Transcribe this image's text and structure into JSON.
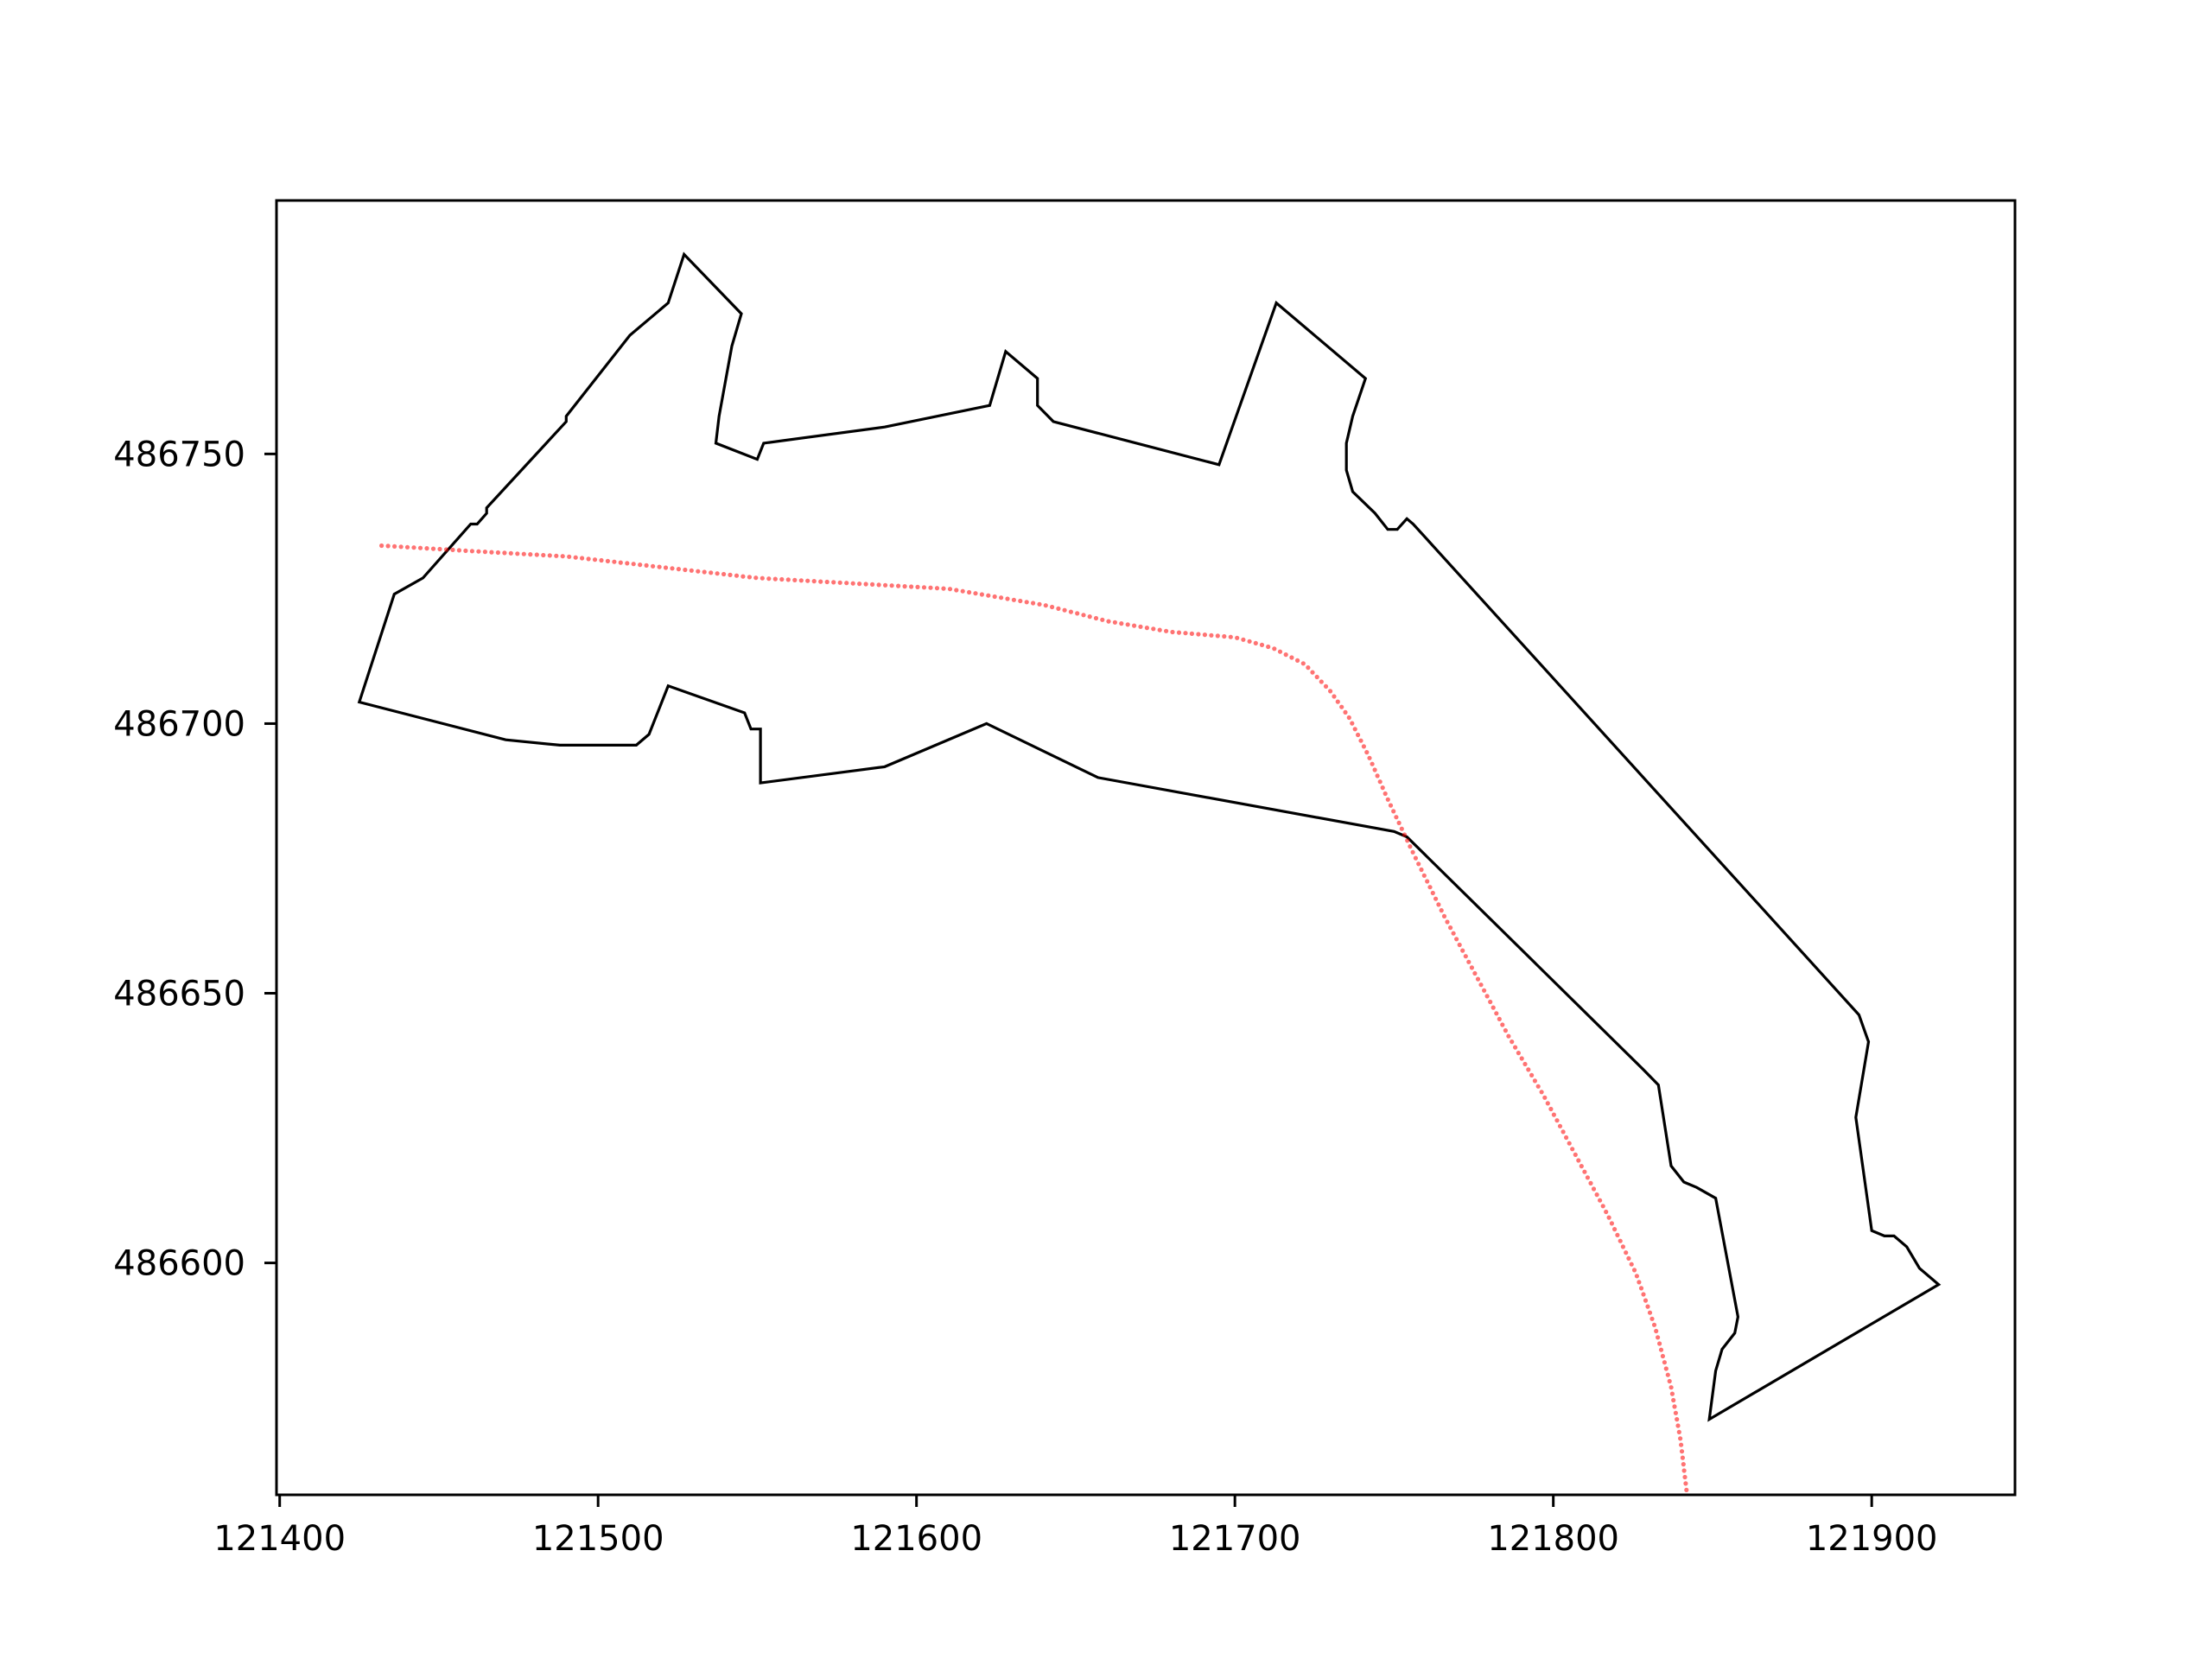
{
  "chart_data": {
    "type": "line",
    "title": "",
    "xlabel": "",
    "ylabel": "",
    "xlim": [
      121399,
      121945
    ],
    "ylim": [
      486557,
      486797
    ],
    "x_ticks": [
      121400,
      121500,
      121600,
      121700,
      121800,
      121900
    ],
    "y_ticks": [
      486600,
      486650,
      486700,
      486750
    ],
    "x_tick_labels": [
      "121400",
      "121500",
      "121600",
      "121700",
      "121800",
      "121900"
    ],
    "y_tick_labels": [
      "486600",
      "486650",
      "486700",
      "486750"
    ],
    "grid": false,
    "legend": "none",
    "colors": {
      "boundary": "#000000",
      "path": "#ff0000"
    },
    "series": [
      {
        "style": "polygon-outline",
        "color": "#000000",
        "points": [
          [
            121425,
            486704
          ],
          [
            121436,
            486724
          ],
          [
            121445,
            486727
          ],
          [
            121460,
            486737
          ],
          [
            121462,
            486737
          ],
          [
            121465,
            486739
          ],
          [
            121465,
            486740
          ],
          [
            121490,
            486756
          ],
          [
            121490,
            486757
          ],
          [
            121510,
            486772
          ],
          [
            121522,
            486778
          ],
          [
            121527,
            486787
          ],
          [
            121545,
            486776
          ],
          [
            121542,
            486770
          ],
          [
            121538,
            486757
          ],
          [
            121537,
            486752
          ],
          [
            121550,
            486749
          ],
          [
            121552,
            486752
          ],
          [
            121590,
            486755
          ],
          [
            121623,
            486759
          ],
          [
            121628,
            486769
          ],
          [
            121638,
            486764
          ],
          [
            121638,
            486759
          ],
          [
            121643,
            486756
          ],
          [
            121695,
            486748
          ],
          [
            121713,
            486778
          ],
          [
            121741,
            486764
          ],
          [
            121737,
            486757
          ],
          [
            121735,
            486752
          ],
          [
            121735,
            486747
          ],
          [
            121737,
            486743
          ],
          [
            121744,
            486739
          ],
          [
            121748,
            486736
          ],
          [
            121751,
            486736
          ],
          [
            121754,
            486738
          ],
          [
            121756,
            486737
          ],
          [
            121896,
            486646
          ],
          [
            121899,
            486641
          ],
          [
            121895,
            486627
          ],
          [
            121900,
            486606
          ],
          [
            121904,
            486605
          ],
          [
            121907,
            486605
          ],
          [
            121911,
            486603
          ],
          [
            121915,
            486599
          ],
          [
            121921,
            486596
          ],
          [
            121849,
            486571
          ],
          [
            121851,
            486580
          ],
          [
            121853,
            486584
          ],
          [
            121857,
            486587
          ],
          [
            121858,
            486590
          ],
          [
            121851,
            486612
          ],
          [
            121845,
            486614
          ],
          [
            121841,
            486615
          ],
          [
            121837,
            486618
          ],
          [
            121833,
            486633
          ],
          [
            121828,
            486636
          ],
          [
            121754,
            486679
          ],
          [
            121750,
            486680
          ],
          [
            121657,
            486690
          ],
          [
            121622,
            486700
          ],
          [
            121590,
            486692
          ],
          [
            121551,
            486689
          ],
          [
            121551,
            486699
          ],
          [
            121548,
            486699
          ],
          [
            121546,
            486702
          ],
          [
            121522,
            486707
          ],
          [
            121516,
            486698
          ],
          [
            121512,
            486696
          ],
          [
            121488,
            486696
          ],
          [
            121471,
            486697
          ],
          [
            121425,
            486704
          ]
        ]
      },
      {
        "style": "dotted-path",
        "color": "#ff0000",
        "points": [
          [
            121432,
            486733
          ],
          [
            121460,
            486732
          ],
          [
            121490,
            486731
          ],
          [
            121520,
            486729
          ],
          [
            121550,
            486727
          ],
          [
            121580,
            486726
          ],
          [
            121610,
            486725
          ],
          [
            121640,
            486722
          ],
          [
            121660,
            486719
          ],
          [
            121680,
            486717
          ],
          [
            121700,
            486716
          ],
          [
            121712,
            486714
          ],
          [
            121722,
            486711
          ],
          [
            121730,
            486706
          ],
          [
            121736,
            486701
          ],
          [
            121742,
            486694
          ],
          [
            121748,
            486686
          ],
          [
            121756,
            486676
          ],
          [
            121766,
            486664
          ],
          [
            121776,
            486653
          ],
          [
            121786,
            486642
          ],
          [
            121797,
            486631
          ],
          [
            121807,
            486620
          ],
          [
            121817,
            486609
          ],
          [
            121826,
            486598
          ],
          [
            121832,
            486588
          ],
          [
            121837,
            486577
          ],
          [
            121840,
            486567
          ],
          [
            121842,
            486557
          ],
          [
            121843,
            486547
          ]
        ]
      }
    ]
  }
}
